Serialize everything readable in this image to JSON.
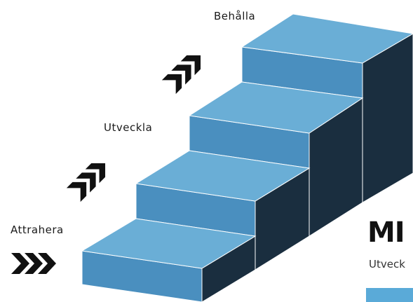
{
  "steps": [
    {
      "label": "Attrahera"
    },
    {
      "label": "Utveckla"
    },
    {
      "label": "Behålla"
    }
  ],
  "brand": {
    "title": "MI",
    "subtitle": "Utveck"
  },
  "colors": {
    "top": "#6aaed6",
    "front": "#4a8fbf",
    "side": "#1a2e3f",
    "arrow": "#111111",
    "swatch": "#5aaad8"
  }
}
